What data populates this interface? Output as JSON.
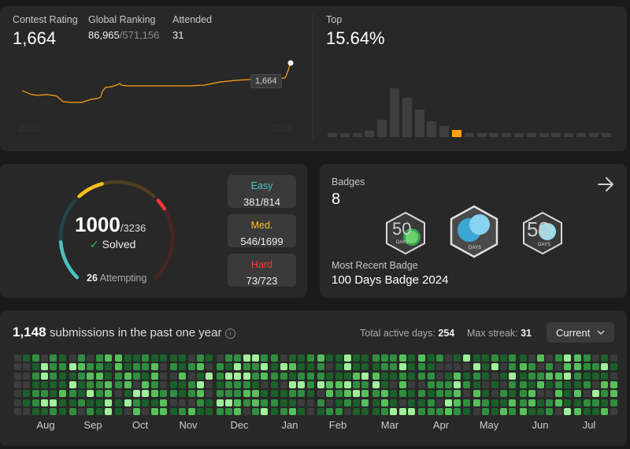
{
  "contest": {
    "rating_label": "Contest Rating",
    "rating_value": "1,664",
    "global_label": "Global Ranking",
    "global_rank": "86,965",
    "global_total": "/571,156",
    "attended_label": "Attended",
    "attended_value": "31",
    "tooltip": "1,664",
    "year_start": "2022",
    "year_end": "2024"
  },
  "top": {
    "label": "Top",
    "value": "15.64%",
    "bars": [
      0.06,
      0.06,
      0.06,
      0.1,
      0.26,
      0.74,
      0.59,
      0.42,
      0.24,
      0.17,
      0.11,
      0.06,
      0.06,
      0.06,
      0.06,
      0.06,
      0.06,
      0.06,
      0.06,
      0.06,
      0.06,
      0.06,
      0.06
    ],
    "highlight_index": 10,
    "highlight_color": "#ffa116"
  },
  "solved": {
    "value": "1000",
    "total": "/3236",
    "check": "✓",
    "label": "Solved",
    "attempting_count": "26",
    "attempting_label": "Attempting",
    "easy_color": "#4cc2c4",
    "medium_color": "#ffc01e",
    "hard_color": "#f63737",
    "easy_fraction": 0.468,
    "medium_fraction": 0.321,
    "hard_fraction": 0.101
  },
  "difficulty": {
    "easy_label": "Easy",
    "easy_value": "381/814",
    "medium_label": "Med.",
    "medium_value": "546/1699",
    "hard_label": "Hard",
    "hard_value": "73/723"
  },
  "badges": {
    "label": "Badges",
    "count": "8",
    "recent_label": "Most Recent Badge",
    "recent_name": "100 Days Badge 2024",
    "badge1_text": "50",
    "badge1_sub": "DAYS",
    "badge2_sub": "DAYS",
    "badge3_text": "50",
    "badge3_sub": "DAYS"
  },
  "submissions": {
    "count": "1,148",
    "label": "submissions in the past one year",
    "info_icon": "info-icon",
    "active_label": "Total active days:",
    "active_value": "254",
    "streak_label": "Max streak:",
    "streak_value": "31",
    "dropdown": "Current",
    "months": [
      "Aug",
      "Sep",
      "Oct",
      "Nov",
      "Dec",
      "Jan",
      "Feb",
      "Mar",
      "Apr",
      "May",
      "Jun",
      "Jul"
    ]
  }
}
